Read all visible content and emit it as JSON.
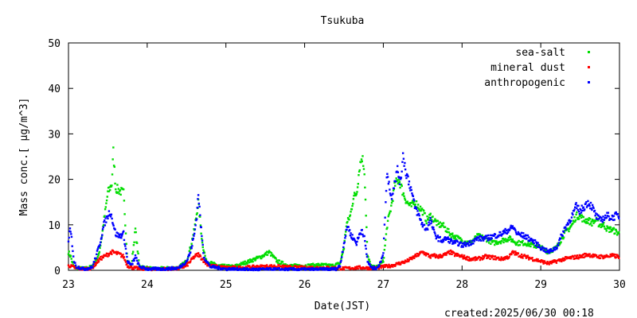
{
  "chart_data": {
    "type": "scatter",
    "title": "Tsukuba",
    "xlabel": "Date(JST)",
    "ylabel": "Mass conc.[ μg/m^3]",
    "created_label": "created:2025/06/30 00:18",
    "xlim": [
      23,
      30
    ],
    "ylim": [
      0,
      50
    ],
    "x_ticks": [
      23,
      24,
      25,
      26,
      27,
      28,
      29,
      30
    ],
    "y_ticks": [
      0,
      10,
      20,
      30,
      40,
      50
    ],
    "grid": false,
    "legend_position": "top-right",
    "series": [
      {
        "name": "sea-salt",
        "color": "#00dd00",
        "points": [
          [
            23.0,
            4.0
          ],
          [
            23.03,
            3.0
          ],
          [
            23.06,
            1.0
          ],
          [
            23.1,
            0.5
          ],
          [
            23.2,
            0.4
          ],
          [
            23.3,
            0.8
          ],
          [
            23.38,
            3.0
          ],
          [
            23.42,
            7.0
          ],
          [
            23.46,
            12.0
          ],
          [
            23.5,
            17.0
          ],
          [
            23.55,
            19.0
          ],
          [
            23.57,
            26.0
          ],
          [
            23.6,
            18.0
          ],
          [
            23.65,
            17.5
          ],
          [
            23.7,
            17.0
          ],
          [
            23.75,
            2.0
          ],
          [
            23.8,
            1.0
          ],
          [
            23.85,
            9.0
          ],
          [
            23.9,
            1.0
          ],
          [
            24.0,
            0.4
          ],
          [
            24.2,
            0.4
          ],
          [
            24.4,
            0.6
          ],
          [
            24.5,
            2.0
          ],
          [
            24.55,
            5.0
          ],
          [
            24.6,
            9.0
          ],
          [
            24.65,
            15.0
          ],
          [
            24.7,
            6.0
          ],
          [
            24.75,
            2.0
          ],
          [
            24.9,
            1.0
          ],
          [
            25.1,
            0.8
          ],
          [
            25.3,
            2.0
          ],
          [
            25.45,
            3.0
          ],
          [
            25.55,
            4.0
          ],
          [
            25.65,
            2.0
          ],
          [
            25.8,
            1.0
          ],
          [
            26.0,
            1.0
          ],
          [
            26.2,
            1.2
          ],
          [
            26.35,
            1.0
          ],
          [
            26.45,
            1.5
          ],
          [
            26.5,
            5.0
          ],
          [
            26.53,
            10.0
          ],
          [
            26.58,
            12.0
          ],
          [
            26.62,
            16.0
          ],
          [
            26.66,
            17.0
          ],
          [
            26.7,
            23.0
          ],
          [
            26.73,
            25.0
          ],
          [
            26.76,
            22.0
          ],
          [
            26.8,
            3.0
          ],
          [
            26.85,
            0.8
          ],
          [
            26.9,
            0.6
          ],
          [
            26.95,
            1.0
          ],
          [
            27.0,
            2.0
          ],
          [
            27.05,
            10.0
          ],
          [
            27.1,
            14.0
          ],
          [
            27.15,
            19.0
          ],
          [
            27.2,
            20.0
          ],
          [
            27.25,
            17.0
          ],
          [
            27.3,
            15.0
          ],
          [
            27.35,
            14.0
          ],
          [
            27.4,
            15.0
          ],
          [
            27.45,
            14.0
          ],
          [
            27.5,
            13.0
          ],
          [
            27.55,
            11.0
          ],
          [
            27.6,
            12.0
          ],
          [
            27.65,
            11.0
          ],
          [
            27.7,
            10.0
          ],
          [
            27.75,
            10.0
          ],
          [
            27.8,
            9.0
          ],
          [
            27.85,
            8.0
          ],
          [
            27.9,
            7.5
          ],
          [
            27.95,
            7.0
          ],
          [
            28.0,
            6.5
          ],
          [
            28.1,
            6.0
          ],
          [
            28.2,
            7.5
          ],
          [
            28.3,
            7.0
          ],
          [
            28.4,
            6.0
          ],
          [
            28.5,
            6.5
          ],
          [
            28.6,
            7.0
          ],
          [
            28.7,
            6.0
          ],
          [
            28.8,
            6.0
          ],
          [
            28.9,
            5.5
          ],
          [
            29.0,
            5.0
          ],
          [
            29.1,
            4.0
          ],
          [
            29.2,
            5.0
          ],
          [
            29.3,
            8.0
          ],
          [
            29.4,
            10.0
          ],
          [
            29.45,
            12.0
          ],
          [
            29.5,
            12.0
          ],
          [
            29.55,
            11.0
          ],
          [
            29.6,
            11.0
          ],
          [
            29.65,
            10.5
          ],
          [
            29.7,
            11.0
          ],
          [
            29.75,
            10.0
          ],
          [
            29.8,
            10.0
          ],
          [
            29.85,
            9.0
          ],
          [
            29.9,
            9.0
          ],
          [
            29.95,
            8.5
          ],
          [
            30.0,
            8.0
          ]
        ]
      },
      {
        "name": "mineral dust",
        "color": "#ff0000",
        "points": [
          [
            23.0,
            1.0
          ],
          [
            23.05,
            0.8
          ],
          [
            23.1,
            0.4
          ],
          [
            23.2,
            0.3
          ],
          [
            23.3,
            0.5
          ],
          [
            23.35,
            1.5
          ],
          [
            23.4,
            2.5
          ],
          [
            23.45,
            3.0
          ],
          [
            23.5,
            3.5
          ],
          [
            23.55,
            4.0
          ],
          [
            23.6,
            3.8
          ],
          [
            23.65,
            3.5
          ],
          [
            23.7,
            3.0
          ],
          [
            23.75,
            1.0
          ],
          [
            23.8,
            0.6
          ],
          [
            23.9,
            0.4
          ],
          [
            24.0,
            0.3
          ],
          [
            24.2,
            0.3
          ],
          [
            24.4,
            0.4
          ],
          [
            24.5,
            1.0
          ],
          [
            24.55,
            2.0
          ],
          [
            24.6,
            3.0
          ],
          [
            24.65,
            3.5
          ],
          [
            24.7,
            2.5
          ],
          [
            24.75,
            1.5
          ],
          [
            24.8,
            1.0
          ],
          [
            24.9,
            0.8
          ],
          [
            25.0,
            0.6
          ],
          [
            25.2,
            0.6
          ],
          [
            25.4,
            0.8
          ],
          [
            25.6,
            0.9
          ],
          [
            25.8,
            0.7
          ],
          [
            26.0,
            0.6
          ],
          [
            26.2,
            0.6
          ],
          [
            26.4,
            0.5
          ],
          [
            26.5,
            0.4
          ],
          [
            26.6,
            0.5
          ],
          [
            26.7,
            0.6
          ],
          [
            26.8,
            0.5
          ],
          [
            26.9,
            0.5
          ],
          [
            27.0,
            0.8
          ],
          [
            27.1,
            1.0
          ],
          [
            27.2,
            1.5
          ],
          [
            27.3,
            2.0
          ],
          [
            27.35,
            2.5
          ],
          [
            27.4,
            3.0
          ],
          [
            27.45,
            3.5
          ],
          [
            27.5,
            4.0
          ],
          [
            27.55,
            3.5
          ],
          [
            27.6,
            3.0
          ],
          [
            27.65,
            3.2
          ],
          [
            27.7,
            3.0
          ],
          [
            27.8,
            3.5
          ],
          [
            27.85,
            4.0
          ],
          [
            27.9,
            3.5
          ],
          [
            28.0,
            3.0
          ],
          [
            28.1,
            2.5
          ],
          [
            28.2,
            2.5
          ],
          [
            28.3,
            3.0
          ],
          [
            28.4,
            2.8
          ],
          [
            28.5,
            2.5
          ],
          [
            28.6,
            3.0
          ],
          [
            28.65,
            4.0
          ],
          [
            28.7,
            3.5
          ],
          [
            28.8,
            3.0
          ],
          [
            28.9,
            2.5
          ],
          [
            29.0,
            2.0
          ],
          [
            29.1,
            1.5
          ],
          [
            29.2,
            2.0
          ],
          [
            29.3,
            2.5
          ],
          [
            29.4,
            2.8
          ],
          [
            29.5,
            3.0
          ],
          [
            29.6,
            3.5
          ],
          [
            29.7,
            3.0
          ],
          [
            29.8,
            3.0
          ],
          [
            29.9,
            3.2
          ],
          [
            30.0,
            3.0
          ]
        ]
      },
      {
        "name": "anthropogenic",
        "color": "#0000ff",
        "points": [
          [
            23.0,
            6.0
          ],
          [
            23.02,
            9.0
          ],
          [
            23.04,
            7.0
          ],
          [
            23.07,
            2.0
          ],
          [
            23.1,
            0.8
          ],
          [
            23.2,
            0.3
          ],
          [
            23.3,
            0.6
          ],
          [
            23.35,
            3.0
          ],
          [
            23.4,
            6.0
          ],
          [
            23.45,
            10.0
          ],
          [
            23.5,
            12.0
          ],
          [
            23.53,
            13.0
          ],
          [
            23.56,
            11.0
          ],
          [
            23.6,
            8.0
          ],
          [
            23.65,
            7.5
          ],
          [
            23.7,
            8.0
          ],
          [
            23.75,
            2.0
          ],
          [
            23.8,
            1.0
          ],
          [
            23.85,
            3.0
          ],
          [
            23.9,
            0.8
          ],
          [
            24.0,
            0.3
          ],
          [
            24.2,
            0.3
          ],
          [
            24.4,
            0.5
          ],
          [
            24.5,
            2.0
          ],
          [
            24.55,
            4.0
          ],
          [
            24.6,
            8.0
          ],
          [
            24.63,
            12.0
          ],
          [
            24.65,
            17.0
          ],
          [
            24.68,
            10.0
          ],
          [
            24.72,
            3.0
          ],
          [
            24.8,
            0.8
          ],
          [
            25.0,
            0.3
          ],
          [
            25.2,
            0.2
          ],
          [
            25.4,
            0.2
          ],
          [
            25.6,
            0.2
          ],
          [
            25.8,
            0.2
          ],
          [
            26.0,
            0.2
          ],
          [
            26.2,
            0.2
          ],
          [
            26.4,
            0.3
          ],
          [
            26.45,
            1.0
          ],
          [
            26.5,
            6.0
          ],
          [
            26.55,
            10.0
          ],
          [
            26.58,
            8.0
          ],
          [
            26.62,
            7.0
          ],
          [
            26.66,
            6.0
          ],
          [
            26.7,
            8.0
          ],
          [
            26.73,
            9.0
          ],
          [
            26.76,
            7.0
          ],
          [
            26.8,
            2.0
          ],
          [
            26.85,
            0.5
          ],
          [
            26.9,
            0.5
          ],
          [
            26.95,
            1.0
          ],
          [
            27.0,
            4.0
          ],
          [
            27.03,
            15.0
          ],
          [
            27.05,
            22.0
          ],
          [
            27.08,
            18.0
          ],
          [
            27.1,
            16.0
          ],
          [
            27.15,
            20.0
          ],
          [
            27.18,
            22.0
          ],
          [
            27.22,
            19.0
          ],
          [
            27.25,
            26.0
          ],
          [
            27.28,
            22.0
          ],
          [
            27.3,
            21.0
          ],
          [
            27.35,
            18.0
          ],
          [
            27.4,
            14.0
          ],
          [
            27.45,
            12.0
          ],
          [
            27.5,
            10.0
          ],
          [
            27.55,
            9.0
          ],
          [
            27.6,
            11.0
          ],
          [
            27.65,
            8.0
          ],
          [
            27.7,
            7.0
          ],
          [
            27.75,
            6.5
          ],
          [
            27.8,
            7.0
          ],
          [
            27.85,
            6.5
          ],
          [
            27.9,
            6.0
          ],
          [
            27.95,
            6.0
          ],
          [
            28.0,
            5.5
          ],
          [
            28.1,
            6.0
          ],
          [
            28.2,
            7.0
          ],
          [
            28.3,
            7.0
          ],
          [
            28.4,
            7.5
          ],
          [
            28.5,
            8.0
          ],
          [
            28.6,
            9.0
          ],
          [
            28.65,
            9.5
          ],
          [
            28.7,
            8.0
          ],
          [
            28.8,
            7.5
          ],
          [
            28.9,
            6.5
          ],
          [
            29.0,
            5.0
          ],
          [
            29.1,
            4.0
          ],
          [
            29.2,
            5.0
          ],
          [
            29.3,
            9.0
          ],
          [
            29.4,
            12.0
          ],
          [
            29.45,
            14.0
          ],
          [
            29.5,
            13.0
          ],
          [
            29.55,
            14.0
          ],
          [
            29.6,
            15.0
          ],
          [
            29.65,
            14.0
          ],
          [
            29.7,
            12.0
          ],
          [
            29.75,
            11.0
          ],
          [
            29.8,
            11.5
          ],
          [
            29.85,
            12.0
          ],
          [
            29.9,
            11.5
          ],
          [
            29.95,
            12.0
          ],
          [
            30.0,
            12.0
          ]
        ]
      }
    ]
  }
}
